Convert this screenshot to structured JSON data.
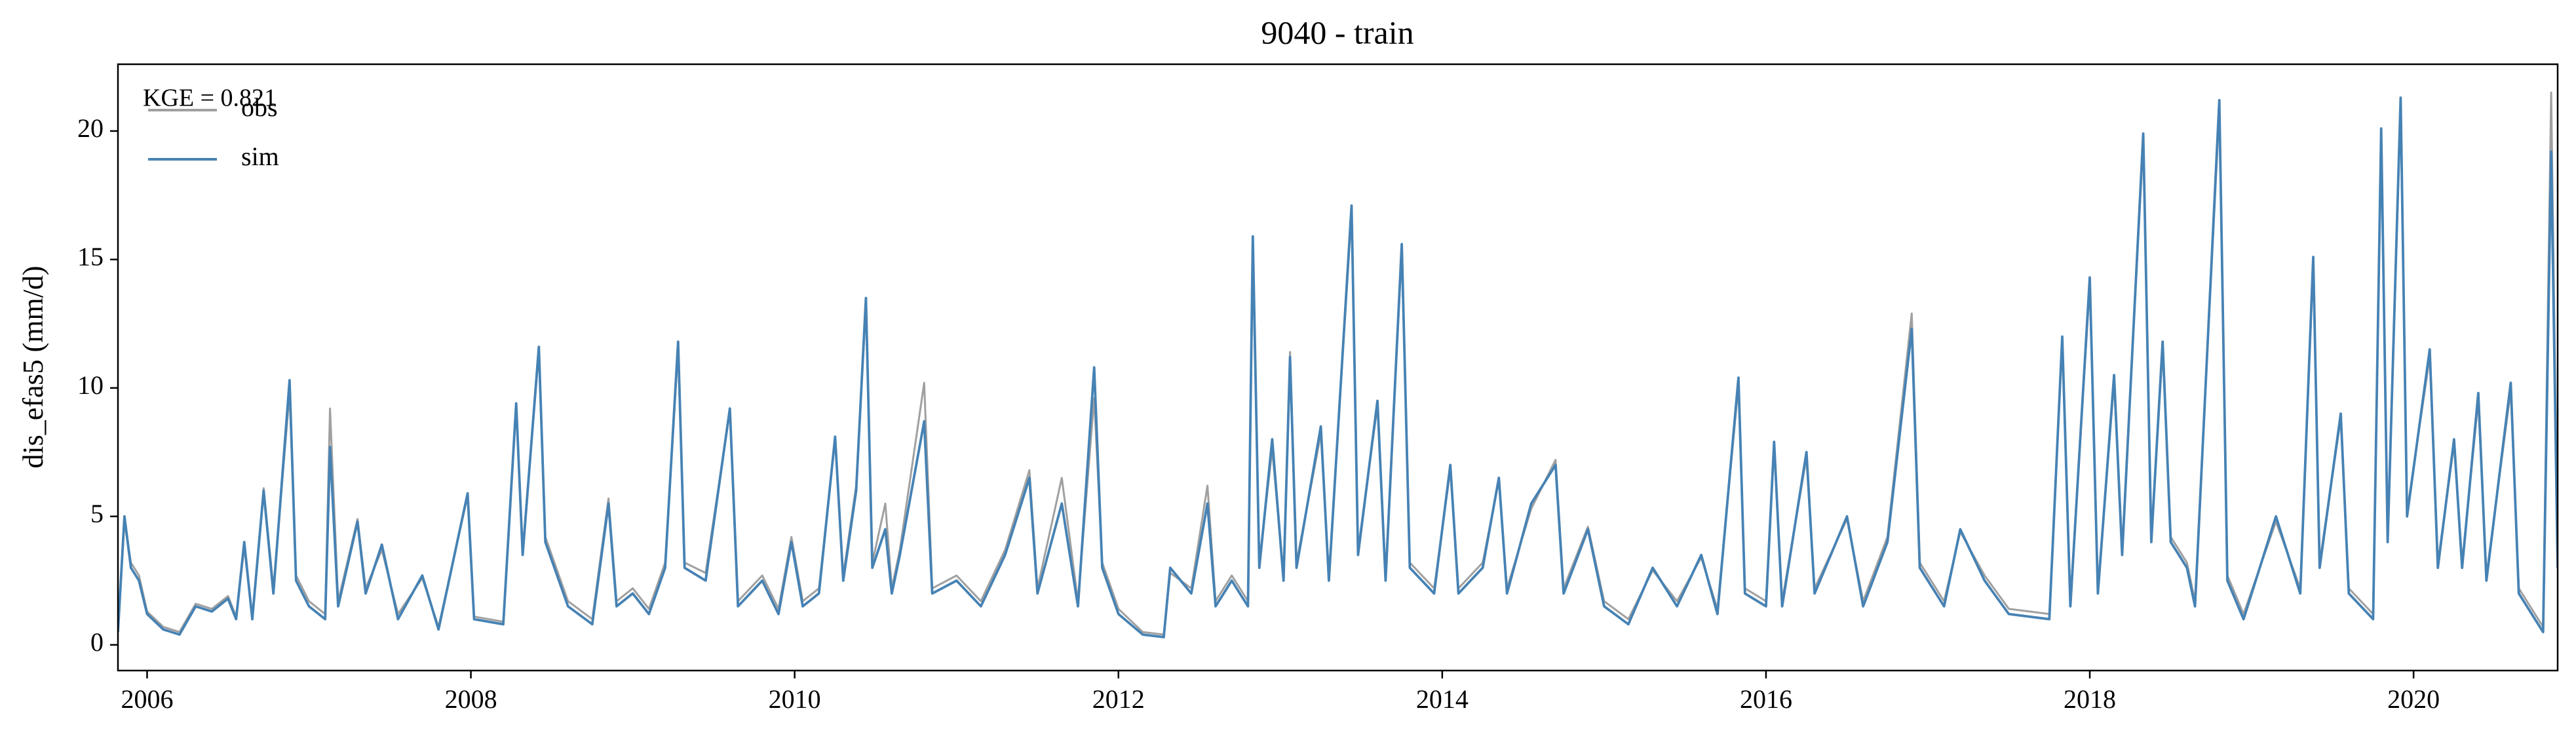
{
  "chart_data": {
    "type": "line",
    "title": "9040 - train",
    "ylabel": "dis_efas5 (mm/d)",
    "annotation": "KGE = 0.821",
    "legend": "upper left",
    "xlim": [
      2005.82,
      2020.89
    ],
    "xticks": [
      2006,
      2008,
      2010,
      2012,
      2014,
      2016,
      2018,
      2020
    ],
    "ylim": [
      -1,
      22.6
    ],
    "yticks": [
      0,
      5,
      10,
      15,
      20
    ],
    "x": [
      2005.82,
      2005.86,
      2005.9,
      2005.95,
      2006.0,
      2006.1,
      2006.2,
      2006.3,
      2006.4,
      2006.5,
      2006.55,
      2006.6,
      2006.65,
      2006.72,
      2006.78,
      2006.88,
      2006.92,
      2007.0,
      2007.1,
      2007.13,
      2007.18,
      2007.3,
      2007.35,
      2007.45,
      2007.55,
      2007.7,
      2007.8,
      2007.98,
      2008.02,
      2008.2,
      2008.28,
      2008.32,
      2008.42,
      2008.46,
      2008.6,
      2008.75,
      2008.85,
      2008.9,
      2009.0,
      2009.1,
      2009.2,
      2009.28,
      2009.32,
      2009.45,
      2009.6,
      2009.65,
      2009.8,
      2009.9,
      2009.98,
      2010.05,
      2010.15,
      2010.25,
      2010.3,
      2010.38,
      2010.44,
      2010.48,
      2010.56,
      2010.6,
      2010.65,
      2010.8,
      2010.85,
      2011.0,
      2011.15,
      2011.3,
      2011.45,
      2011.5,
      2011.65,
      2011.75,
      2011.85,
      2011.9,
      2012.0,
      2012.15,
      2012.28,
      2012.32,
      2012.45,
      2012.55,
      2012.6,
      2012.7,
      2012.8,
      2012.83,
      2012.87,
      2012.95,
      2013.02,
      2013.06,
      2013.1,
      2013.25,
      2013.3,
      2013.44,
      2013.48,
      2013.6,
      2013.65,
      2013.75,
      2013.8,
      2013.95,
      2014.05,
      2014.1,
      2014.25,
      2014.35,
      2014.4,
      2014.55,
      2014.7,
      2014.75,
      2014.9,
      2015.0,
      2015.15,
      2015.3,
      2015.45,
      2015.6,
      2015.7,
      2015.83,
      2015.87,
      2016.0,
      2016.05,
      2016.1,
      2016.25,
      2016.3,
      2016.5,
      2016.6,
      2016.75,
      2016.9,
      2016.95,
      2017.1,
      2017.2,
      2017.35,
      2017.5,
      2017.75,
      2017.83,
      2017.88,
      2018.0,
      2018.05,
      2018.15,
      2018.2,
      2018.33,
      2018.38,
      2018.45,
      2018.5,
      2018.6,
      2018.65,
      2018.8,
      2018.85,
      2018.95,
      2019.15,
      2019.3,
      2019.38,
      2019.42,
      2019.55,
      2019.6,
      2019.75,
      2019.8,
      2019.84,
      2019.92,
      2019.96,
      2020.1,
      2020.15,
      2020.25,
      2020.3,
      2020.4,
      2020.45,
      2020.6,
      2020.65,
      2020.75,
      2020.8,
      2020.85,
      2020.89
    ],
    "series": [
      {
        "name": "obs",
        "color": "#a0a0a0",
        "values": [
          0.6,
          4.8,
          3.2,
          2.7,
          1.3,
          0.7,
          0.5,
          1.6,
          1.4,
          1.9,
          1.1,
          3.8,
          1.1,
          6.1,
          2.2,
          9.8,
          2.7,
          1.7,
          1.2,
          9.2,
          1.7,
          4.9,
          2.2,
          3.7,
          1.2,
          2.6,
          0.7,
          5.8,
          1.1,
          0.9,
          9.3,
          3.7,
          11.4,
          4.2,
          1.7,
          1.0,
          5.7,
          1.7,
          2.2,
          1.4,
          3.2,
          11.5,
          3.2,
          2.8,
          9.1,
          1.7,
          2.7,
          1.4,
          4.2,
          1.7,
          2.2,
          8.0,
          2.7,
          6.2,
          13.2,
          3.2,
          5.5,
          2.2,
          3.7,
          10.2,
          2.2,
          2.7,
          1.7,
          3.7,
          6.8,
          2.2,
          6.5,
          1.7,
          9.6,
          3.2,
          1.4,
          0.5,
          0.4,
          2.8,
          2.2,
          6.2,
          1.7,
          2.7,
          1.7,
          15.3,
          3.2,
          7.6,
          2.7,
          11.4,
          3.2,
          8.2,
          2.7,
          16.8,
          3.7,
          9.3,
          2.7,
          15.3,
          3.2,
          2.2,
          6.8,
          2.2,
          3.2,
          6.4,
          2.2,
          5.3,
          7.2,
          2.2,
          4.6,
          1.7,
          1.0,
          2.9,
          1.7,
          3.4,
          1.4,
          10.1,
          2.2,
          1.7,
          7.7,
          1.7,
          7.3,
          2.2,
          4.9,
          1.7,
          4.2,
          12.9,
          3.2,
          1.7,
          4.4,
          2.7,
          1.4,
          1.2,
          11.8,
          1.7,
          14.0,
          2.2,
          10.2,
          3.7,
          19.6,
          4.2,
          11.5,
          4.2,
          3.2,
          1.7,
          20.8,
          2.7,
          1.2,
          4.8,
          2.2,
          14.8,
          3.2,
          8.8,
          2.2,
          1.2,
          19.7,
          4.2,
          21.0,
          5.2,
          11.2,
          3.2,
          7.8,
          3.2,
          9.5,
          2.7,
          9.9,
          2.2,
          1.2,
          0.7,
          21.5,
          3.4
        ]
      },
      {
        "name": "sim",
        "color": "#4682b4",
        "values": [
          0.5,
          5.0,
          3.0,
          2.5,
          1.2,
          0.6,
          0.4,
          1.5,
          1.3,
          1.8,
          1.0,
          4.0,
          1.0,
          6.0,
          2.0,
          10.3,
          2.5,
          1.5,
          1.0,
          7.7,
          1.5,
          4.8,
          2.0,
          3.9,
          1.0,
          2.7,
          0.6,
          5.9,
          1.0,
          0.8,
          9.4,
          3.5,
          11.6,
          4.0,
          1.5,
          0.8,
          5.5,
          1.5,
          2.0,
          1.2,
          3.0,
          11.8,
          3.0,
          2.5,
          9.2,
          1.5,
          2.5,
          1.2,
          4.0,
          1.5,
          2.0,
          8.1,
          2.5,
          6.0,
          13.5,
          3.0,
          4.5,
          2.0,
          3.5,
          8.7,
          2.0,
          2.5,
          1.5,
          3.5,
          6.5,
          2.0,
          5.5,
          1.5,
          10.8,
          3.0,
          1.2,
          0.4,
          0.3,
          3.0,
          2.0,
          5.5,
          1.5,
          2.5,
          1.5,
          15.9,
          3.0,
          8.0,
          2.5,
          11.2,
          3.0,
          8.5,
          2.5,
          17.1,
          3.5,
          9.5,
          2.5,
          15.6,
          3.0,
          2.0,
          7.0,
          2.0,
          3.0,
          6.5,
          2.0,
          5.5,
          7.0,
          2.0,
          4.5,
          1.5,
          0.8,
          3.0,
          1.5,
          3.5,
          1.2,
          10.4,
          2.0,
          1.5,
          7.9,
          1.5,
          7.5,
          2.0,
          5.0,
          1.5,
          4.0,
          12.3,
          3.0,
          1.5,
          4.5,
          2.5,
          1.2,
          1.0,
          12.0,
          1.5,
          14.3,
          2.0,
          10.5,
          3.5,
          19.9,
          4.0,
          11.8,
          4.0,
          3.0,
          1.5,
          21.2,
          2.5,
          1.0,
          5.0,
          2.0,
          15.1,
          3.0,
          9.0,
          2.0,
          1.0,
          20.1,
          4.0,
          21.3,
          5.0,
          11.5,
          3.0,
          8.0,
          3.0,
          9.8,
          2.5,
          10.2,
          2.0,
          1.0,
          0.5,
          19.2,
          3.0
        ]
      }
    ]
  }
}
